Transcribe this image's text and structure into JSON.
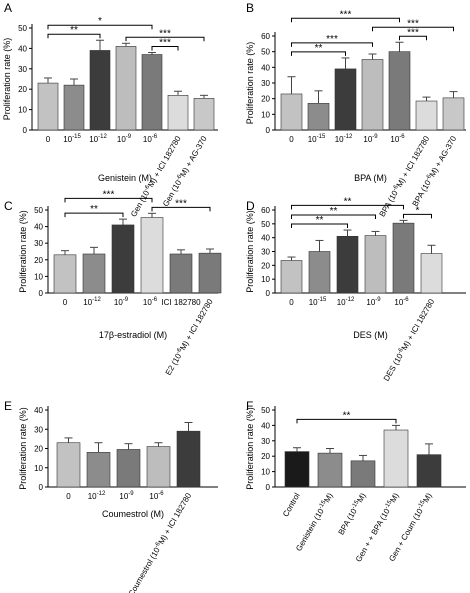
{
  "colors": {
    "axis": "#000000",
    "error": "#444444",
    "grays": [
      "#bdbdbd",
      "#8c8c8c",
      "#3c3c3c",
      "#c8c8c8",
      "#7a7a7a",
      "#dcdcdc",
      "#c2c2c2",
      "#1a1a1a"
    ]
  },
  "chart_data": [
    {
      "panel": "A",
      "type": "bar",
      "ylabel": "Proliferation rate (%)",
      "xlabel": "Genistein (M)",
      "ylim": [
        0,
        50
      ],
      "yticks": [
        "0",
        "10",
        "20",
        "30",
        "40",
        "50"
      ],
      "categories": [
        "0",
        "10-15",
        "10-12",
        "10-9",
        "10-6",
        "Gen (10-6M) + ICI 182780",
        "Gen (10-6M) + AG-370"
      ],
      "tick_labels": [
        [
          "0"
        ],
        [
          "10",
          "-15"
        ],
        [
          "10",
          "-12"
        ],
        [
          "10",
          "-9"
        ],
        [
          "10",
          "-6"
        ],
        [
          "Gen (10",
          "-6",
          "M)",
          "+ ICI 182780"
        ],
        [
          "Gen (10",
          "-6",
          "M)",
          "+ AG-370"
        ]
      ],
      "values": [
        23,
        22,
        39,
        41,
        37,
        17,
        15.5
      ],
      "errors": [
        2.5,
        3,
        5,
        1.5,
        1,
        2,
        1.5
      ],
      "bar_colors": [
        6,
        1,
        2,
        0,
        4,
        5,
        3
      ],
      "significance": [
        {
          "from": 0,
          "to": 2,
          "label": "**"
        },
        {
          "from": 0,
          "to": 4,
          "label": "*"
        },
        {
          "from": 4,
          "to": 5,
          "label": "***"
        },
        {
          "from": 3,
          "to": 6,
          "label": "***"
        }
      ]
    },
    {
      "panel": "B",
      "type": "bar",
      "ylabel": "Proliferation rate (%)",
      "xlabel": "BPA (M)",
      "ylim": [
        0,
        60
      ],
      "yticks": [
        "0",
        "10",
        "20",
        "30",
        "40",
        "50",
        "60"
      ],
      "categories": [
        "0",
        "10-15",
        "10-12",
        "10-9",
        "10-6",
        "BPA (10-6M) + ICI 182780",
        "BPA (10-6M) + AG-370"
      ],
      "tick_labels": [
        [
          "0"
        ],
        [
          "10",
          "-15"
        ],
        [
          "10",
          "-12"
        ],
        [
          "10",
          "-9"
        ],
        [
          "10",
          "-6"
        ],
        [
          "BPA (10",
          "-6",
          "M)",
          "+ ICI 182780"
        ],
        [
          "BPA (10",
          "-6",
          "M)",
          "+ AG-370"
        ]
      ],
      "values": [
        23,
        17,
        39,
        45,
        50,
        18.5,
        20.5
      ],
      "errors": [
        11,
        8,
        7,
        3.5,
        6,
        2.5,
        4
      ],
      "bar_colors": [
        6,
        1,
        2,
        0,
        4,
        5,
        3
      ],
      "significance": [
        {
          "from": 0,
          "to": 2,
          "label": "**"
        },
        {
          "from": 0,
          "to": 3,
          "label": "***"
        },
        {
          "from": 0,
          "to": 4,
          "label": "***"
        },
        {
          "from": 4,
          "to": 5,
          "label": "***"
        },
        {
          "from": 3,
          "to": 6,
          "label": "***"
        }
      ]
    },
    {
      "panel": "C",
      "type": "bar",
      "ylabel": "Proliferation rate (%)",
      "xlabel": "17β-estradiol (M)",
      "ylim": [
        0,
        50
      ],
      "yticks": [
        "0",
        "10",
        "20",
        "30",
        "40",
        "50"
      ],
      "categories": [
        "0",
        "10-12",
        "10-9",
        "10-6",
        "ICI 182780",
        "E2 (10-6M) + ICI 182780"
      ],
      "tick_labels": [
        [
          "0"
        ],
        [
          "10",
          "-12"
        ],
        [
          "10",
          "-9"
        ],
        [
          "10",
          "-6"
        ],
        [
          "ICI 182780"
        ],
        [
          "E2 (10",
          "-6",
          "M)",
          "+ ICI 182780"
        ]
      ],
      "values": [
        23,
        23.5,
        41,
        45.5,
        23.5,
        24
      ],
      "errors": [
        2.5,
        4,
        3.5,
        2.5,
        2.5,
        2.5
      ],
      "bar_colors": [
        6,
        1,
        2,
        5,
        4,
        4
      ],
      "significance": [
        {
          "from": 0,
          "to": 2,
          "label": "**"
        },
        {
          "from": 0,
          "to": 3,
          "label": "***"
        },
        {
          "from": 3,
          "to": 5,
          "label": "***"
        }
      ]
    },
    {
      "panel": "D",
      "type": "bar",
      "ylabel": "Proliferation rate (%)",
      "xlabel": "DES (M)",
      "ylim": [
        0,
        60
      ],
      "yticks": [
        "0",
        "10",
        "20",
        "30",
        "40",
        "50",
        "60"
      ],
      "categories": [
        "0",
        "10-15",
        "10-12",
        "10-9",
        "10-6",
        "DES (10-6M) + ICI 182780"
      ],
      "tick_labels": [
        [
          "0"
        ],
        [
          "10",
          "-15"
        ],
        [
          "10",
          "-12"
        ],
        [
          "10",
          "-9"
        ],
        [
          "10",
          "-6"
        ],
        [
          "DES (10",
          "-6",
          "M)",
          "+ ICI 182780"
        ]
      ],
      "values": [
        23.5,
        30,
        41,
        41.5,
        50.5,
        28.5
      ],
      "errors": [
        2.5,
        8,
        4.5,
        3,
        2,
        6
      ],
      "bar_colors": [
        6,
        1,
        2,
        0,
        4,
        5
      ],
      "significance": [
        {
          "from": 0,
          "to": 2,
          "label": "**"
        },
        {
          "from": 0,
          "to": 3,
          "label": "**"
        },
        {
          "from": 0,
          "to": 4,
          "label": "**"
        },
        {
          "from": 4,
          "to": 5,
          "label": "*"
        }
      ]
    },
    {
      "panel": "E",
      "type": "bar",
      "ylabel": "Proliferation rate (%)",
      "xlabel": "Coumestrol (M)",
      "ylim": [
        0,
        40
      ],
      "yticks": [
        "0",
        "10",
        "20",
        "30",
        "40"
      ],
      "categories": [
        "0",
        "10-12",
        "10-9",
        "10-6",
        "Coumestrol (10-6M) + ICI 182780"
      ],
      "tick_labels": [
        [
          "0"
        ],
        [
          "10",
          "-12"
        ],
        [
          "10",
          "-9"
        ],
        [
          "10",
          "-6"
        ],
        [
          "Coumestrol (10",
          "-6",
          "M)",
          "+ ICI 182780"
        ]
      ],
      "values": [
        23,
        18,
        19.5,
        21,
        29
      ],
      "errors": [
        2.5,
        5,
        3,
        2,
        4.5
      ],
      "bar_colors": [
        6,
        1,
        4,
        0,
        2
      ],
      "significance": []
    },
    {
      "panel": "F",
      "type": "bar",
      "ylabel": "Proliferation rate (%)",
      "xlabel": "",
      "ylim": [
        0,
        50
      ],
      "yticks": [
        "0",
        "10",
        "20",
        "30",
        "40",
        "50"
      ],
      "categories": [
        "Control",
        "Genistein (10-15M)",
        "BPA (10-15M)",
        "Gen + + BPA (10-15M)",
        "Gen + Coum (10-15M)"
      ],
      "tick_labels": [
        [
          "Control"
        ],
        [
          "Genistein (10",
          "-15",
          "M)"
        ],
        [
          "BPA (10",
          "-15",
          "M)"
        ],
        [
          "Gen + + BPA",
          "(10",
          "-15",
          "M)"
        ],
        [
          "Gen + Coum",
          "(10",
          "-15",
          "M)"
        ]
      ],
      "values": [
        23,
        22,
        17,
        37,
        21
      ],
      "errors": [
        2.5,
        3,
        3.5,
        3,
        7
      ],
      "bar_colors": [
        7,
        1,
        4,
        5,
        2
      ],
      "significance": [
        {
          "from": 0,
          "to": 3,
          "label": "**"
        }
      ]
    }
  ]
}
